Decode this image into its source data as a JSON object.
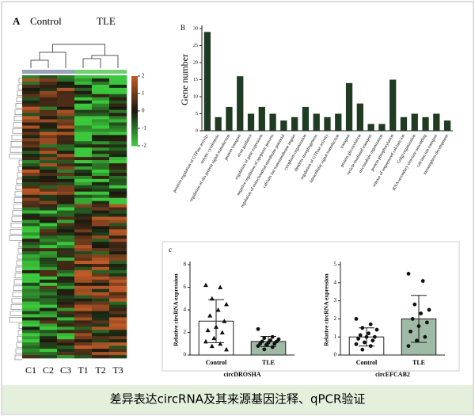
{
  "heatmap": {
    "label": "A",
    "groups": [
      "Control",
      "TLE"
    ],
    "columns": [
      "C1",
      "C2",
      "C3",
      "T1",
      "T2",
      "T3"
    ],
    "colorbar_ticks": [
      2,
      1,
      0,
      -1,
      -2
    ]
  },
  "chart_data": [
    {
      "type": "bar",
      "label": "B",
      "y_label": "Gene number",
      "color": "#1f3b22",
      "ylim": [
        0,
        30
      ],
      "yticks": [
        0,
        5,
        10,
        15,
        20,
        25,
        30
      ],
      "categories": [
        "positive regulation of GTPase activity",
        "mitotic cytokinesis",
        "regulation of rho protein signal transduction",
        "protein transport",
        "axon guidance",
        "regulation of gene expression",
        "negative regulation of apoptotic process",
        "regulation of mitochondrial membrane potential",
        "calcium ion transmembrane import",
        "cytoplasm organization",
        "dendrite morphogenesis",
        "regulation of GTPase activity",
        "intracellular signal transduction",
        "transport",
        "protein glycosylation",
        "vesicle-mediated transport",
        "microtubule organization",
        "protein phosphorylation",
        "release of sequestered calcium ion",
        "Golgi organization",
        "RNA secondary structure unwinding",
        "calcium ion transport",
        "metanephros development"
      ],
      "values": [
        29,
        4,
        7,
        16,
        5,
        7,
        5,
        3,
        4,
        7,
        5,
        4,
        5,
        14,
        8,
        2,
        2,
        15,
        4,
        5,
        4,
        5,
        3
      ]
    },
    {
      "type": "dot-bar",
      "label": "c",
      "x_label": "circDROSHA",
      "y_label": "Relative circRNA expression",
      "ylim": [
        0,
        8
      ],
      "yticks": [
        0,
        2,
        4,
        6,
        8
      ],
      "categories": [
        "Control",
        "TLE"
      ],
      "colors": [
        "#ffffff",
        "#9fbaa5"
      ],
      "values": [
        3.0,
        1.2
      ],
      "errors": [
        1.9,
        0.45
      ],
      "points": [
        [
          6.2,
          6.0,
          5.0,
          4.5,
          4.0,
          3.5,
          3.0,
          2.5,
          2.2,
          2.0,
          1.5,
          1.2,
          1.0,
          0.8,
          0.5
        ],
        [
          2.3,
          1.6,
          1.5,
          1.4,
          1.3,
          1.2,
          1.2,
          1.1,
          1.0,
          1.0,
          0.9,
          0.8,
          0.7,
          0.5
        ]
      ]
    },
    {
      "type": "dot-bar",
      "x_label": "circEFCAB2",
      "y_label": "Relative circRNA expression",
      "ylim": [
        0,
        5
      ],
      "yticks": [
        0,
        1,
        2,
        3,
        4,
        5
      ],
      "categories": [
        "Control",
        "TLE"
      ],
      "colors": [
        "#ffffff",
        "#9fbaa5"
      ],
      "values": [
        1.0,
        2.0
      ],
      "errors": [
        0.5,
        1.3
      ],
      "points": [
        [
          2.0,
          1.7,
          1.5,
          1.4,
          1.2,
          1.1,
          1.0,
          1.0,
          0.9,
          0.8,
          0.7,
          0.6,
          0.5,
          0.3
        ],
        [
          4.5,
          4.1,
          2.8,
          2.5,
          2.3,
          2.0,
          1.8,
          1.6,
          1.3,
          1.0,
          0.8,
          0.5
        ]
      ]
    }
  ],
  "caption": "差异表达circRNA及其来源基因注释、qPCR验证"
}
